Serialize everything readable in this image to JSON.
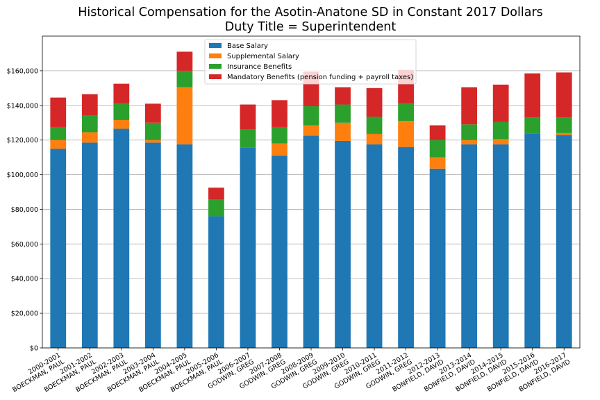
{
  "chart_data": {
    "type": "bar",
    "stacked": true,
    "title": "Historical Compensation for the Asotin-Anatone SD in Constant 2017 Dollars",
    "subtitle": "Duty Title = Superintendent",
    "xlabel": "",
    "ylabel": "",
    "ylim": [
      0,
      180000
    ],
    "y_ticks": [
      "$0",
      "$20,000",
      "$40,000",
      "$60,000",
      "$80,000",
      "$100,000",
      "$120,000",
      "$140,000",
      "$160,000"
    ],
    "y_tick_values": [
      0,
      20000,
      40000,
      60000,
      80000,
      100000,
      120000,
      140000,
      160000
    ],
    "grid": "horizontal",
    "legend_placement": "top-center",
    "categories": [
      [
        "2000-2001",
        "BOECKMAN, PAUL"
      ],
      [
        "2001-2002",
        "BOECKMAN, PAUL"
      ],
      [
        "2002-2003",
        "BOECKMAN, PAUL"
      ],
      [
        "2003-2004",
        "BOECKMAN, PAUL"
      ],
      [
        "2004-2005",
        "BOECKMAN, PAUL"
      ],
      [
        "2005-2006",
        "BOECKMAN, PAUL"
      ],
      [
        "2006-2007",
        "GODWIN, GREG"
      ],
      [
        "2007-2008",
        "GODWIN, GREG"
      ],
      [
        "2008-2009",
        "GODWIN, GREG"
      ],
      [
        "2009-2010",
        "GODWIN, GREG"
      ],
      [
        "2010-2011",
        "GODWIN, GREG"
      ],
      [
        "2011-2012",
        "GODWIN, GREG"
      ],
      [
        "2012-2013",
        "BONFIELD, DAVID"
      ],
      [
        "2013-2014",
        "BONFIELD, DAVID"
      ],
      [
        "2014-2015",
        "BONFIELD, DAVID"
      ],
      [
        "2015-2016",
        "BONFIELD, DAVID"
      ],
      [
        "2016-2017",
        "BONFIELD, DAVID"
      ]
    ],
    "series": [
      {
        "name": "Base Salary",
        "color": "#1f77b4",
        "values": [
          115000,
          118500,
          126500,
          118500,
          117500,
          76000,
          115500,
          111000,
          122500,
          119500,
          117500,
          116000,
          103500,
          117500,
          117500,
          123500,
          123000
        ]
      },
      {
        "name": "Supplemental Salary",
        "color": "#ff7f0e",
        "values": [
          5000,
          6000,
          5000,
          1500,
          33000,
          0,
          0,
          7000,
          6000,
          10500,
          6000,
          15000,
          6500,
          2500,
          3000,
          0,
          1000
        ]
      },
      {
        "name": "Insurance Benefits",
        "color": "#2ca02c",
        "values": [
          7500,
          9500,
          9500,
          10000,
          9500,
          9500,
          10500,
          9500,
          11000,
          10500,
          10000,
          10000,
          10000,
          9000,
          10000,
          9500,
          9000
        ]
      },
      {
        "name": "Mandatory Benefits (pension funding + payroll taxes)",
        "color": "#d62728",
        "values": [
          17000,
          12500,
          11500,
          11000,
          11000,
          7000,
          14500,
          15500,
          20000,
          10000,
          16500,
          19500,
          8500,
          21500,
          21500,
          25500,
          26000
        ]
      }
    ]
  }
}
